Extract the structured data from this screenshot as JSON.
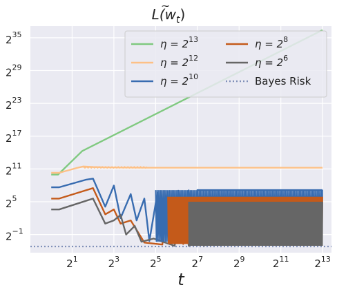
{
  "chart_data": {
    "type": "line",
    "title_main": "L",
    "title_arg": "(w",
    "title_sub": "t",
    "title_close": ")",
    "xlabel": "t",
    "ylabel": "",
    "x_scale": "log2",
    "y_scale": "log2",
    "xlim": [
      0.5,
      11000
    ],
    "ylim": [
      0.05,
      150000000000.0
    ],
    "grid": true,
    "background": "#eaeaf2",
    "legend_placement": "top-right",
    "legend_columns": 2,
    "x_ticks": [
      {
        "base": "2",
        "exp": "1",
        "value": 2
      },
      {
        "base": "2",
        "exp": "3",
        "value": 8
      },
      {
        "base": "2",
        "exp": "5",
        "value": 32
      },
      {
        "base": "2",
        "exp": "7",
        "value": 128
      },
      {
        "base": "2",
        "exp": "9",
        "value": 512
      },
      {
        "base": "2",
        "exp": "11",
        "value": 2048
      },
      {
        "base": "2",
        "exp": "13",
        "value": 8192
      }
    ],
    "y_ticks": [
      {
        "base": "2",
        "exp": "−1",
        "value": 0.5
      },
      {
        "base": "2",
        "exp": "5",
        "value": 32
      },
      {
        "base": "2",
        "exp": "11",
        "value": 2048
      },
      {
        "base": "2",
        "exp": "17",
        "value": 131072
      },
      {
        "base": "2",
        "exp": "23",
        "value": 8388608
      },
      {
        "base": "2",
        "exp": "29",
        "value": 536870912
      },
      {
        "base": "2",
        "exp": "35",
        "value": 34359738368
      }
    ],
    "series": [
      {
        "name_base": "η = 2",
        "name_exp": "13",
        "color": "#7fc97f",
        "style": "solid",
        "points": [
          [
            1,
            1000
          ],
          [
            1.25,
            1000
          ],
          [
            2.8,
            20000
          ],
          [
            8192,
            92000000000.0
          ]
        ]
      },
      {
        "name_base": "η = 2",
        "name_exp": "12",
        "color": "#fdc086",
        "style": "solid",
        "points": [
          [
            1,
            1250
          ],
          [
            1.3,
            1250
          ],
          [
            2.3,
            2300
          ],
          [
            2.9,
            2800
          ],
          [
            4,
            2600
          ],
          [
            6,
            2500
          ],
          [
            10,
            2450
          ],
          [
            24,
            2400
          ],
          [
            8192,
            2400
          ]
        ]
      },
      {
        "name_base": "η = 2",
        "name_exp": "10",
        "color": "#386cb0",
        "style": "solid",
        "points": [
          [
            1,
            200
          ],
          [
            1.3,
            200
          ],
          [
            3.2,
            530
          ],
          [
            4,
            600
          ],
          [
            6,
            17
          ],
          [
            8,
            250
          ],
          [
            10,
            4
          ],
          [
            14,
            85
          ],
          [
            17,
            3
          ],
          [
            22,
            48
          ],
          [
            26,
            0.22
          ],
          [
            34,
            100
          ],
          [
            40,
            0.2
          ],
          [
            48,
            110
          ],
          [
            56,
            0.3
          ],
          [
            68,
            130
          ],
          [
            80,
            0.2
          ],
          [
            96,
            135
          ],
          [
            112,
            0.2
          ],
          [
            128,
            140
          ],
          [
            8192,
            140
          ]
        ]
      },
      {
        "name_base": "η = 2",
        "name_exp": "8",
        "color": "#c45a1a",
        "style": "solid",
        "points": [
          [
            1,
            48
          ],
          [
            1.3,
            48
          ],
          [
            4,
            180
          ],
          [
            6,
            6.5
          ],
          [
            8,
            12
          ],
          [
            10,
            2
          ],
          [
            14,
            3
          ],
          [
            22,
            0.18
          ],
          [
            40,
            0.14
          ],
          [
            48,
            40
          ],
          [
            56,
            0.2
          ],
          [
            68,
            50
          ],
          [
            80,
            0.15
          ],
          [
            96,
            55
          ],
          [
            112,
            0.16
          ],
          [
            128,
            60
          ],
          [
            8192,
            60
          ]
        ]
      },
      {
        "name_base": "η = 2",
        "name_exp": "6",
        "color": "#666666",
        "style": "solid",
        "points": [
          [
            1,
            12
          ],
          [
            1.3,
            12
          ],
          [
            4,
            48
          ],
          [
            6,
            2
          ],
          [
            8,
            3
          ],
          [
            10,
            6
          ],
          [
            12,
            0.5
          ],
          [
            16,
            1.5
          ],
          [
            20,
            0.2
          ],
          [
            30,
            0.3
          ],
          [
            60,
            0.12
          ],
          [
            80,
            20
          ],
          [
            96,
            0.12
          ],
          [
            128,
            30
          ],
          [
            160,
            0.12
          ],
          [
            200,
            32
          ],
          [
            8192,
            32
          ]
        ]
      },
      {
        "name": "Bayes Risk",
        "color": "#8090b8",
        "style": "dotted",
        "points": [
          [
            0.5,
            0.11
          ],
          [
            11000,
            0.11
          ]
        ]
      }
    ]
  }
}
